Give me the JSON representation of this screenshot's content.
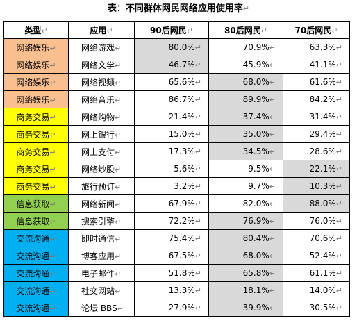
{
  "caption": {
    "text": "表：不同群体网民网络应用使用率",
    "mark": "↵"
  },
  "colors": {
    "网络娱乐": "#fabf8f",
    "商务交易": "#ffff00",
    "信息获取": "#92d050",
    "交流沟通": "#00b0f0",
    "highlight": "#d9d9d9"
  },
  "header": [
    "类型",
    "应用",
    "90后网民",
    "80后网民",
    "70后网民"
  ],
  "rows": [
    {
      "type": "网络娱乐",
      "app": "网络游戏",
      "v90": "80.0%",
      "v80": "70.9%",
      "v70": "63.3%",
      "hl": 90
    },
    {
      "type": "网络娱乐",
      "app": "网络文学",
      "v90": "46.7%",
      "v80": "45.9%",
      "v70": "41.1%",
      "hl": 90
    },
    {
      "type": "网络娱乐",
      "app": "网络视频",
      "v90": "65.6%",
      "v80": "68.0%",
      "v70": "61.6%",
      "hl": 80
    },
    {
      "type": "网络娱乐",
      "app": "网络音乐",
      "v90": "86.7%",
      "v80": "89.9%",
      "v70": "84.2%",
      "hl": 80
    },
    {
      "type": "商务交易",
      "app": "网络购物",
      "v90": "21.4%",
      "v80": "37.4%",
      "v70": "31.4%",
      "hl": 80
    },
    {
      "type": "商务交易",
      "app": "网上银行",
      "v90": "15.0%",
      "v80": "35.0%",
      "v70": "29.4%",
      "hl": 80
    },
    {
      "type": "商务交易",
      "app": "网上支付",
      "v90": "17.3%",
      "v80": "34.5%",
      "v70": "28.6%",
      "hl": 80
    },
    {
      "type": "商务交易",
      "app": "网络炒股",
      "v90": "5.6%",
      "v80": "9.5%",
      "v70": "22.1%",
      "hl": 70
    },
    {
      "type": "商务交易",
      "app": "旅行预订",
      "v90": "3.2%",
      "v80": "9.7%",
      "v70": "10.3%",
      "hl": 70
    },
    {
      "type": "信息获取",
      "app": "网络新闻",
      "v90": "67.9%",
      "v80": "82.0%",
      "v70": "88.0%",
      "hl": 70
    },
    {
      "type": "信息获取",
      "app": "搜索引擎",
      "v90": "72.2%",
      "v80": "76.9%",
      "v70": "76.0%",
      "hl": 80
    },
    {
      "type": "交流沟通",
      "app": "即时通信",
      "v90": "75.4%",
      "v80": "80.4%",
      "v70": "70.6%",
      "hl": 80
    },
    {
      "type": "交流沟通",
      "app": "博客应用",
      "v90": "67.5%",
      "v80": "68.0%",
      "v70": "52.4%",
      "hl": 80
    },
    {
      "type": "交流沟通",
      "app": "电子邮件",
      "v90": "51.8%",
      "v80": "65.8%",
      "v70": "61.1%",
      "hl": 80
    },
    {
      "type": "交流沟通",
      "app": "社交网站",
      "v90": "13.3%",
      "v80": "18.1%",
      "v70": "14.0%",
      "hl": 80
    },
    {
      "type": "交流沟通",
      "app": "论坛 BBS",
      "v90": "27.9%",
      "v80": "39.9%",
      "v70": "30.5%",
      "hl": 80
    }
  ]
}
